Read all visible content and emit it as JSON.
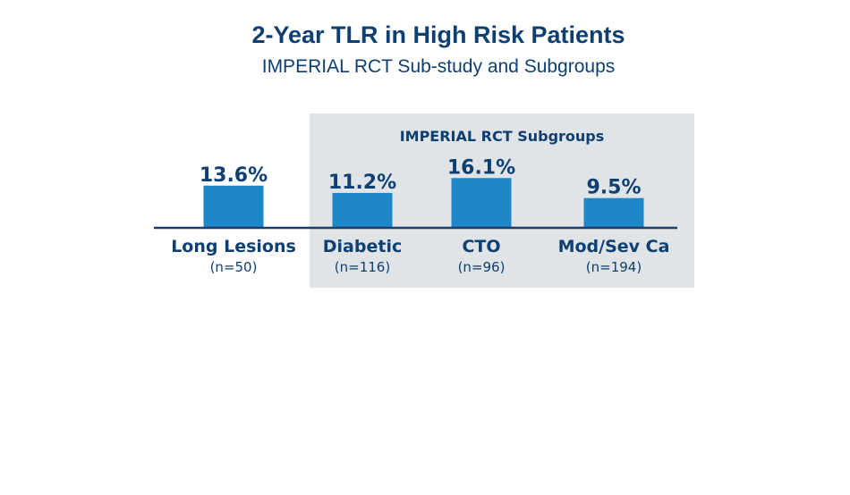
{
  "chart_data": {
    "type": "bar",
    "title": "2-Year TLR in High Risk Patients",
    "subtitle": "IMPERIAL RCT Sub-study and Subgroups",
    "group_label": "IMPERIAL RCT Subgroups",
    "categories": [
      "Long Lesions",
      "Diabetic",
      "CTO",
      "Mod/Sev Ca"
    ],
    "n_labels": [
      "(n=50)",
      "(n=116)",
      "(n=96)",
      "(n=194)"
    ],
    "values": [
      13.6,
      11.2,
      16.1,
      9.5
    ],
    "value_labels": [
      "13.6%",
      "11.2%",
      "16.1%",
      "9.5%"
    ],
    "grouped": [
      false,
      true,
      true,
      true
    ],
    "unit": "%",
    "xlabel": "",
    "ylabel": "",
    "ylim": [
      0,
      20
    ],
    "grid": false,
    "colors": {
      "bar": "#1f87c8",
      "text": "#0d3f73",
      "axis": "#1a3d6d",
      "group_bg": "#e1e4e7"
    }
  }
}
